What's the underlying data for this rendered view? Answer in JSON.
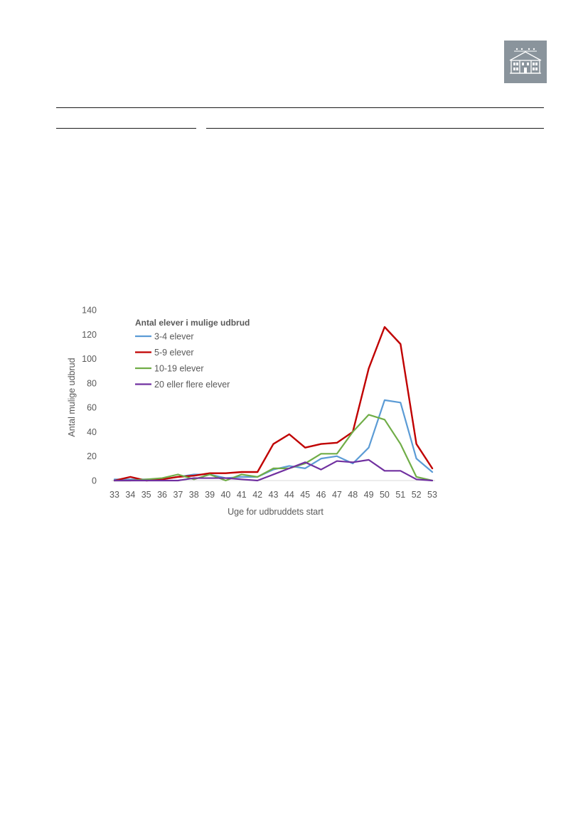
{
  "chart_data": {
    "type": "line",
    "xlabel": "Uge for udbruddets start",
    "ylabel": "Antal mulige udbrud",
    "ylim": [
      0,
      140
    ],
    "yticks": [
      0,
      20,
      40,
      60,
      80,
      100,
      120,
      140
    ],
    "categories": [
      "33",
      "34",
      "35",
      "36",
      "37",
      "38",
      "39",
      "40",
      "41",
      "42",
      "43",
      "44",
      "45",
      "46",
      "47",
      "48",
      "49",
      "50",
      "51",
      "52",
      "53"
    ],
    "legend": {
      "title": "Antal elever i mulige udbrud",
      "placement": "top-left"
    },
    "grid": false,
    "series": [
      {
        "name": "3-4 elever",
        "color": "#5b9bd5",
        "values": [
          1,
          1,
          1,
          1,
          3,
          5,
          5,
          2,
          3,
          3,
          9,
          12,
          10,
          18,
          20,
          14,
          27,
          66,
          64,
          18,
          7
        ]
      },
      {
        "name": "5-9 elever",
        "color": "#c00000",
        "values": [
          0,
          3,
          0,
          1,
          3,
          4,
          6,
          6,
          7,
          7,
          30,
          38,
          27,
          30,
          31,
          40,
          92,
          126,
          112,
          30,
          10
        ]
      },
      {
        "name": "10-19 elever",
        "color": "#70ad47",
        "values": [
          0,
          0,
          1,
          2,
          5,
          1,
          5,
          0,
          5,
          3,
          10,
          10,
          14,
          22,
          22,
          40,
          54,
          50,
          30,
          3,
          0
        ]
      },
      {
        "name": "20 eller flere elever",
        "color": "#7030a0",
        "values": [
          0,
          0,
          0,
          0,
          0,
          2,
          2,
          2,
          1,
          0,
          5,
          10,
          15,
          9,
          16,
          15,
          17,
          8,
          8,
          1,
          0
        ]
      }
    ]
  }
}
